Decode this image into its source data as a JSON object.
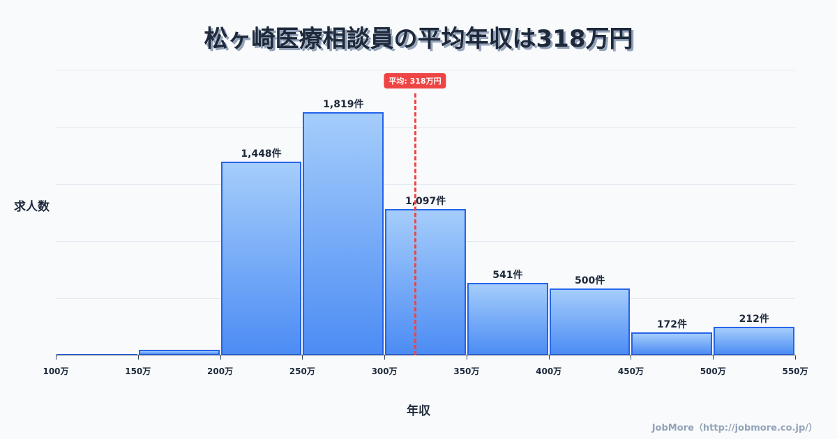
{
  "title": "松ヶ崎医療相談員の平均年収は318万円",
  "y_axis_label": "求人数",
  "x_axis_label": "年収",
  "mean_badge": "平均: 318万円",
  "credit": "JobMore（http://jobmore.co.jp/）",
  "colors": {
    "bar_fill_top": "#a5cdfb",
    "bar_fill_bottom": "#4c8cf4",
    "bar_border": "#2563eb",
    "mean_line": "#ef4444",
    "title": "#1e293b"
  },
  "chart_data": {
    "type": "bar",
    "title": "松ヶ崎医療相談員の平均年収は318万円",
    "xlabel": "年収",
    "ylabel": "求人数",
    "x_ticks": [
      "100万",
      "150万",
      "200万",
      "250万",
      "300万",
      "350万",
      "400万",
      "450万",
      "500万",
      "550万"
    ],
    "categories": [
      "100-150万",
      "150-200万",
      "200-250万",
      "250-300万",
      "300-350万",
      "350-400万",
      "400-450万",
      "450-500万",
      "500-550万"
    ],
    "values": [
      5,
      40,
      1448,
      1819,
      1097,
      541,
      500,
      172,
      212
    ],
    "value_labels": [
      "",
      "",
      "1,448件",
      "1,819件",
      "1,097件",
      "541件",
      "500件",
      "172件",
      "212件"
    ],
    "mean": 318,
    "mean_label": "平均: 318万円",
    "ylim": [
      0,
      2137
    ],
    "grid": true,
    "legend": "none"
  }
}
